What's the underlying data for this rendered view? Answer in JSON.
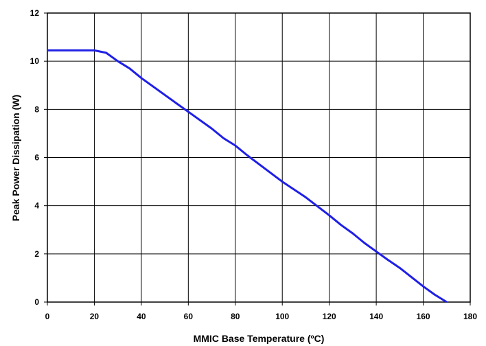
{
  "chart_data": {
    "type": "line",
    "title": "",
    "xlabel": "MMIC Base Temperature (ºC)",
    "ylabel": "Peak Power Dissipation (W)",
    "xlim": [
      0,
      180
    ],
    "ylim": [
      0,
      12
    ],
    "x_ticks": [
      0,
      20,
      40,
      60,
      80,
      100,
      120,
      140,
      160,
      180
    ],
    "y_ticks": [
      0,
      2,
      4,
      6,
      8,
      10,
      12
    ],
    "grid": true,
    "legend": "none",
    "series": [
      {
        "color": "#1f1fe6",
        "points": [
          [
            0,
            10.45
          ],
          [
            20,
            10.45
          ],
          [
            25,
            10.35
          ],
          [
            30,
            10.0
          ],
          [
            35,
            9.7
          ],
          [
            40,
            9.3
          ],
          [
            50,
            8.6
          ],
          [
            55,
            8.25
          ],
          [
            60,
            7.9
          ],
          [
            70,
            7.2
          ],
          [
            75,
            6.8
          ],
          [
            80,
            6.5
          ],
          [
            85,
            6.1
          ],
          [
            100,
            5.0
          ],
          [
            110,
            4.35
          ],
          [
            120,
            3.6
          ],
          [
            125,
            3.2
          ],
          [
            130,
            2.85
          ],
          [
            135,
            2.45
          ],
          [
            140,
            2.1
          ],
          [
            145,
            1.75
          ],
          [
            150,
            1.42
          ],
          [
            160,
            0.65
          ],
          [
            165,
            0.3
          ],
          [
            170,
            0.0
          ]
        ]
      }
    ]
  }
}
